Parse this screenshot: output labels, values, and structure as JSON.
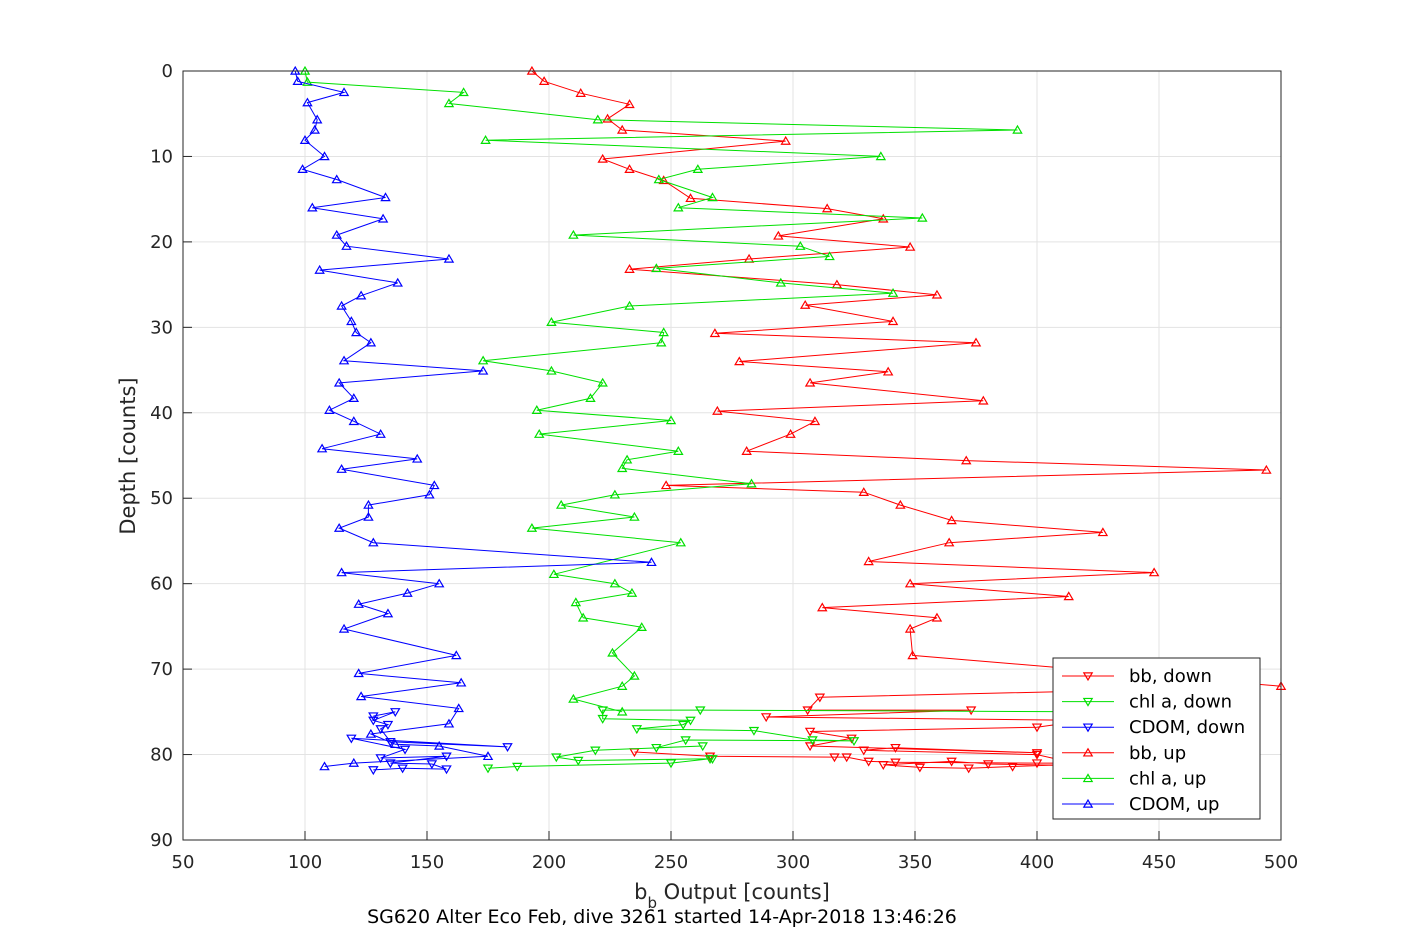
{
  "chart_data": {
    "type": "line",
    "title": "",
    "caption": "SG620 Alter Eco Feb, dive 3261 started 14-Apr-2018 13:46:26",
    "xlabel_main": "b",
    "xlabel_sub": "b",
    "xlabel_rest": " Output [counts]",
    "ylabel": "Depth [counts]",
    "xlim": [
      50,
      500
    ],
    "ylim": [
      0,
      90
    ],
    "y_reversed": true,
    "grid": true,
    "legend_position": "bottom-right",
    "xticks": [
      "50",
      "100",
      "150",
      "200",
      "250",
      "300",
      "350",
      "400",
      "450",
      "500"
    ],
    "yticks": [
      "0",
      "10",
      "20",
      "30",
      "40",
      "50",
      "60",
      "70",
      "80",
      "90"
    ],
    "series": [
      {
        "name": "bb, down",
        "color": "#ff0000",
        "marker": "triangle-down",
        "points": [
          [
            235,
            79.7
          ],
          [
            266,
            80.2
          ],
          [
            317,
            80.3
          ],
          [
            322,
            80.3
          ],
          [
            331,
            80.8
          ],
          [
            342,
            80.9
          ],
          [
            400,
            81.0
          ],
          [
            410,
            81.0
          ],
          [
            430,
            81.0
          ],
          [
            390,
            81.4
          ],
          [
            372,
            81.6
          ],
          [
            352,
            81.5
          ],
          [
            337,
            81.2
          ],
          [
            365,
            80.8
          ],
          [
            380,
            81.1
          ],
          [
            420,
            81.3
          ],
          [
            400,
            80.0
          ],
          [
            329,
            79.5
          ],
          [
            342,
            79.2
          ],
          [
            400,
            79.8
          ],
          [
            307,
            79.0
          ],
          [
            324,
            78.1
          ],
          [
            307,
            77.3
          ],
          [
            400,
            76.8
          ],
          [
            420,
            76.0
          ],
          [
            289,
            75.6
          ],
          [
            373,
            74.8
          ],
          [
            306,
            74.8
          ],
          [
            311,
            73.3
          ],
          [
            430,
            72.5
          ]
        ]
      },
      {
        "name": "chl a, down",
        "color": "#00e000",
        "marker": "triangle-down",
        "points": [
          [
            175,
            81.6
          ],
          [
            187,
            81.4
          ],
          [
            250,
            81.0
          ],
          [
            266,
            80.5
          ],
          [
            267,
            80.5
          ],
          [
            212,
            80.7
          ],
          [
            203,
            80.3
          ],
          [
            219,
            79.5
          ],
          [
            263,
            79.0
          ],
          [
            244,
            79.2
          ],
          [
            256,
            78.3
          ],
          [
            325,
            78.4
          ],
          [
            308,
            78.3
          ],
          [
            284,
            77.2
          ],
          [
            236,
            77.0
          ],
          [
            255,
            76.5
          ],
          [
            258,
            76.0
          ],
          [
            222,
            75.8
          ],
          [
            222,
            74.8
          ],
          [
            262,
            74.8
          ],
          [
            420,
            75.0
          ]
        ]
      },
      {
        "name": "CDOM, down",
        "color": "#0000ff",
        "marker": "triangle-down",
        "points": [
          [
            128,
            81.8
          ],
          [
            140,
            81.6
          ],
          [
            158,
            81.7
          ],
          [
            152,
            81.1
          ],
          [
            135,
            81.0
          ],
          [
            158,
            80.2
          ],
          [
            131,
            80.4
          ],
          [
            141,
            79.4
          ],
          [
            119,
            78.1
          ],
          [
            183,
            79.1
          ],
          [
            135,
            78.5
          ],
          [
            131,
            77.0
          ],
          [
            134,
            76.5
          ],
          [
            128,
            76.0
          ],
          [
            137,
            75.0
          ],
          [
            128,
            75.5
          ]
        ]
      },
      {
        "name": "bb, up",
        "color": "#ff0000",
        "marker": "triangle-up",
        "points": [
          [
            193,
            0.0
          ],
          [
            198,
            1.2
          ],
          [
            213,
            2.6
          ],
          [
            233,
            3.9
          ],
          [
            224,
            5.6
          ],
          [
            230,
            6.9
          ],
          [
            297,
            8.2
          ],
          [
            222,
            10.3
          ],
          [
            233,
            11.5
          ],
          [
            247,
            12.8
          ],
          [
            258,
            14.9
          ],
          [
            314,
            16.1
          ],
          [
            337,
            17.3
          ],
          [
            294,
            19.3
          ],
          [
            348,
            20.6
          ],
          [
            282,
            22.0
          ],
          [
            233,
            23.2
          ],
          [
            318,
            25.0
          ],
          [
            359,
            26.2
          ],
          [
            305,
            27.4
          ],
          [
            341,
            29.3
          ],
          [
            268,
            30.7
          ],
          [
            375,
            31.8
          ],
          [
            278,
            34.0
          ],
          [
            339,
            35.2
          ],
          [
            307,
            36.5
          ],
          [
            378,
            38.6
          ],
          [
            269,
            39.8
          ],
          [
            309,
            41.0
          ],
          [
            299,
            42.5
          ],
          [
            281,
            44.5
          ],
          [
            371,
            45.6
          ],
          [
            494,
            46.7
          ],
          [
            248,
            48.5
          ],
          [
            329,
            49.3
          ],
          [
            344,
            50.8
          ],
          [
            365,
            52.6
          ],
          [
            427,
            54.0
          ],
          [
            364,
            55.2
          ],
          [
            331,
            57.4
          ],
          [
            448,
            58.7
          ],
          [
            348,
            60.0
          ],
          [
            413,
            61.5
          ],
          [
            312,
            62.8
          ],
          [
            359,
            64.0
          ],
          [
            348,
            65.3
          ],
          [
            349,
            68.4
          ],
          [
            500,
            72.0
          ]
        ]
      },
      {
        "name": "chl a, up",
        "color": "#00e000",
        "marker": "triangle-up",
        "points": [
          [
            100,
            0.0
          ],
          [
            101,
            1.3
          ],
          [
            165,
            2.5
          ],
          [
            159,
            3.8
          ],
          [
            220,
            5.7
          ],
          [
            392,
            6.9
          ],
          [
            174,
            8.1
          ],
          [
            336,
            10.0
          ],
          [
            261,
            11.5
          ],
          [
            245,
            12.7
          ],
          [
            267,
            14.8
          ],
          [
            253,
            16.0
          ],
          [
            353,
            17.2
          ],
          [
            210,
            19.2
          ],
          [
            303,
            20.5
          ],
          [
            315,
            21.7
          ],
          [
            244,
            23.1
          ],
          [
            295,
            24.8
          ],
          [
            341,
            26.0
          ],
          [
            233,
            27.5
          ],
          [
            201,
            29.4
          ],
          [
            247,
            30.6
          ],
          [
            246,
            31.8
          ],
          [
            173,
            33.9
          ],
          [
            201,
            35.1
          ],
          [
            222,
            36.5
          ],
          [
            217,
            38.3
          ],
          [
            195,
            39.7
          ],
          [
            250,
            40.9
          ],
          [
            196,
            42.5
          ],
          [
            253,
            44.5
          ],
          [
            232,
            45.5
          ],
          [
            230,
            46.5
          ],
          [
            283,
            48.3
          ],
          [
            227,
            49.6
          ],
          [
            205,
            50.8
          ],
          [
            235,
            52.2
          ],
          [
            193,
            53.5
          ],
          [
            254,
            55.2
          ],
          [
            202,
            58.9
          ],
          [
            227,
            60.0
          ],
          [
            234,
            61.1
          ],
          [
            211,
            62.2
          ],
          [
            214,
            64.0
          ],
          [
            238,
            65.1
          ],
          [
            226,
            68.1
          ],
          [
            235,
            70.8
          ],
          [
            230,
            72.0
          ],
          [
            210,
            73.5
          ],
          [
            230,
            75.0
          ]
        ]
      },
      {
        "name": "CDOM, up",
        "color": "#0000ff",
        "marker": "triangle-up",
        "points": [
          [
            96,
            0.0
          ],
          [
            97,
            1.2
          ],
          [
            116,
            2.5
          ],
          [
            101,
            3.7
          ],
          [
            105,
            5.7
          ],
          [
            104,
            6.9
          ],
          [
            100,
            8.1
          ],
          [
            108,
            10.0
          ],
          [
            99,
            11.5
          ],
          [
            113,
            12.7
          ],
          [
            133,
            14.8
          ],
          [
            103,
            16.0
          ],
          [
            132,
            17.3
          ],
          [
            113,
            19.2
          ],
          [
            117,
            20.5
          ],
          [
            159,
            22.0
          ],
          [
            106,
            23.3
          ],
          [
            138,
            24.8
          ],
          [
            123,
            26.3
          ],
          [
            115,
            27.5
          ],
          [
            119,
            29.3
          ],
          [
            121,
            30.6
          ],
          [
            127,
            31.8
          ],
          [
            116,
            33.9
          ],
          [
            173,
            35.1
          ],
          [
            114,
            36.5
          ],
          [
            120,
            38.3
          ],
          [
            110,
            39.7
          ],
          [
            120,
            41.0
          ],
          [
            131,
            42.5
          ],
          [
            107,
            44.2
          ],
          [
            146,
            45.4
          ],
          [
            115,
            46.6
          ],
          [
            153,
            48.5
          ],
          [
            151,
            49.6
          ],
          [
            126,
            50.8
          ],
          [
            126,
            52.2
          ],
          [
            114,
            53.5
          ],
          [
            128,
            55.2
          ],
          [
            242,
            57.5
          ],
          [
            115,
            58.7
          ],
          [
            155,
            60.0
          ],
          [
            142,
            61.1
          ],
          [
            122,
            62.4
          ],
          [
            134,
            63.5
          ],
          [
            116,
            65.3
          ],
          [
            162,
            68.4
          ],
          [
            122,
            70.5
          ],
          [
            164,
            71.6
          ],
          [
            123,
            73.2
          ],
          [
            163,
            74.6
          ],
          [
            159,
            76.4
          ],
          [
            127,
            77.6
          ],
          [
            137,
            78.8
          ],
          [
            155,
            79.0
          ],
          [
            175,
            80.2
          ],
          [
            120,
            81.0
          ],
          [
            108,
            81.4
          ]
        ]
      }
    ]
  }
}
